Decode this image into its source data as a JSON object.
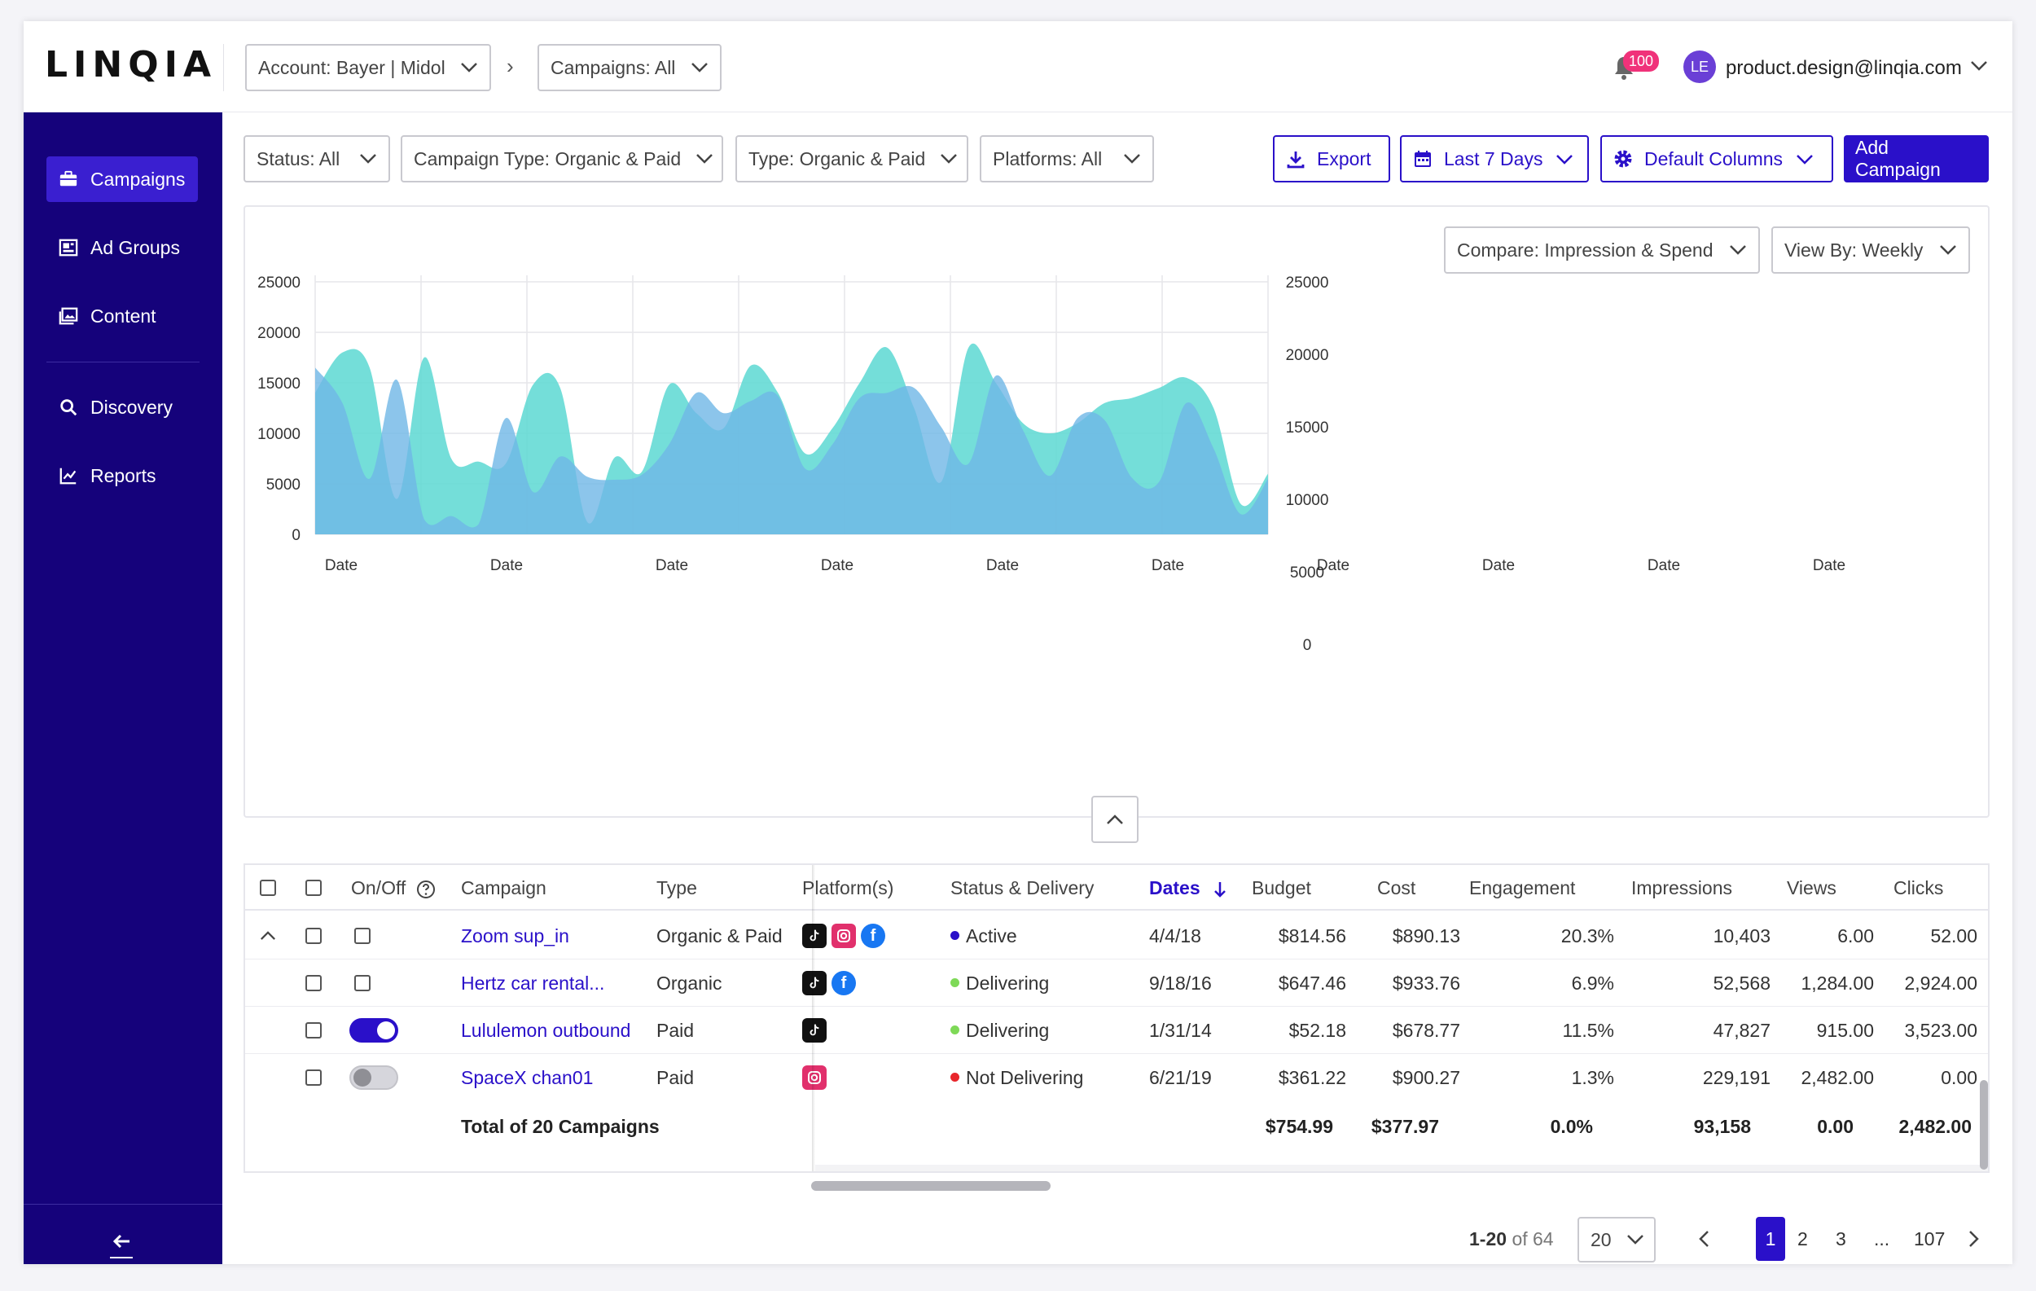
{
  "header": {
    "logo": "LINQIA",
    "account_select": "Account: Bayer | Midol",
    "campaigns_select": "Campaigns: All",
    "notification_count": "100",
    "avatar_initials": "LE",
    "user_email": "product.design@linqia.com"
  },
  "sidebar": {
    "items": [
      {
        "label": "Campaigns",
        "icon": "briefcase-icon",
        "active": true
      },
      {
        "label": "Ad Groups",
        "icon": "ad-groups-icon"
      },
      {
        "label": "Content",
        "icon": "images-icon"
      },
      {
        "label": "Discovery",
        "icon": "search-icon"
      },
      {
        "label": "Reports",
        "icon": "line-chart-icon"
      }
    ]
  },
  "filters": {
    "status": "Status: All",
    "campaign_type": "Campaign Type: Organic & Paid",
    "type": "Type: Organic & Paid",
    "platforms": "Platforms: All",
    "export": "Export",
    "date_range": "Last 7 Days",
    "columns": "Default Columns",
    "add_campaign": "Add Campaign"
  },
  "chart_controls": {
    "compare": "Compare: Impression & Spend",
    "view_by": "View By: Weekly"
  },
  "chart_data": {
    "type": "area",
    "left_ticks": [
      "25000",
      "20000",
      "15000",
      "10000",
      "5000",
      "0"
    ],
    "right_ticks": [
      "25000",
      "20000",
      "15000",
      "10000",
      "5000",
      "0"
    ],
    "x_labels": [
      "Date",
      "Date",
      "Date",
      "Date",
      "Date",
      "Date",
      "Date",
      "Date",
      "Date",
      "Date"
    ],
    "ylim": [
      0,
      25000
    ],
    "grid": true,
    "series": [
      {
        "color": "#5cd8d2",
        "values": [
          14000,
          18000,
          16500,
          3500,
          17500,
          7500,
          7200,
          7000,
          14800,
          14500,
          1200,
          7600,
          6200,
          14800,
          12000,
          10500,
          16700,
          14000,
          8000,
          10500,
          15000,
          18500,
          12500,
          5200,
          18500,
          15000,
          11000,
          10000,
          11000,
          13000,
          13500,
          14500,
          15500,
          12500,
          3000,
          6000
        ]
      },
      {
        "color": "#6fb6e6",
        "values": [
          16500,
          13000,
          5500,
          15300,
          1500,
          1800,
          1000,
          11500,
          4200,
          7700,
          5700,
          5400,
          5900,
          8900,
          14000,
          12000,
          13200,
          13700,
          6500,
          8900,
          13500,
          14000,
          14500,
          10600,
          7000,
          15700,
          10300,
          5800,
          11500,
          11300,
          5600,
          5200,
          13000,
          8500,
          2000,
          5500
        ]
      }
    ]
  },
  "table": {
    "headers": {
      "on_off": "On/Off",
      "campaign": "Campaign",
      "type": "Type",
      "platforms": "Platform(s)",
      "status": "Status & Delivery",
      "dates": "Dates",
      "budget": "Budget",
      "cost": "Cost",
      "engagement": "Engagement",
      "impressions": "Impressions",
      "views": "Views",
      "clicks": "Clicks"
    },
    "rows": [
      {
        "campaign": "Zoom sup_in",
        "type": "Organic & Paid",
        "status": "Active",
        "status_color": "#2a10c9",
        "dates": "4/4/18",
        "budget": "$814.56",
        "cost": "$890.13",
        "engagement": "20.3%",
        "impressions": "10,403",
        "views": "6.00",
        "clicks": "52.00"
      },
      {
        "campaign": "Hertz car rental...",
        "type": "Organic",
        "status": "Delivering",
        "status_color": "#7ed957",
        "dates": "9/18/16",
        "budget": "$647.46",
        "cost": "$933.76",
        "engagement": "6.9%",
        "impressions": "52,568",
        "views": "1,284.00",
        "clicks": "2,924.00"
      },
      {
        "campaign": "Lululemon outbound",
        "type": "Paid",
        "status": "Delivering",
        "status_color": "#7ed957",
        "dates": "1/31/14",
        "budget": "$52.18",
        "cost": "$678.77",
        "engagement": "11.5%",
        "impressions": "47,827",
        "views": "915.00",
        "clicks": "3,523.00"
      },
      {
        "campaign": "SpaceX chan01",
        "type": "Paid",
        "status": "Not Delivering",
        "status_color": "#e8262b",
        "dates": "6/21/19",
        "budget": "$361.22",
        "cost": "$900.27",
        "engagement": "1.3%",
        "impressions": "229,191",
        "views": "2,482.00",
        "clicks": "0.00"
      }
    ],
    "totals": {
      "label": "Total of 20 Campaigns",
      "budget": "$754.99",
      "cost": "$377.97",
      "engagement": "0.0%",
      "impressions": "93,158",
      "views": "0.00",
      "clicks": "2,482.00"
    }
  },
  "pagination": {
    "range": "1-20",
    "of_total": "of 64",
    "page_size": "20",
    "pages": [
      "1",
      "2",
      "3",
      "...",
      "107"
    ]
  }
}
